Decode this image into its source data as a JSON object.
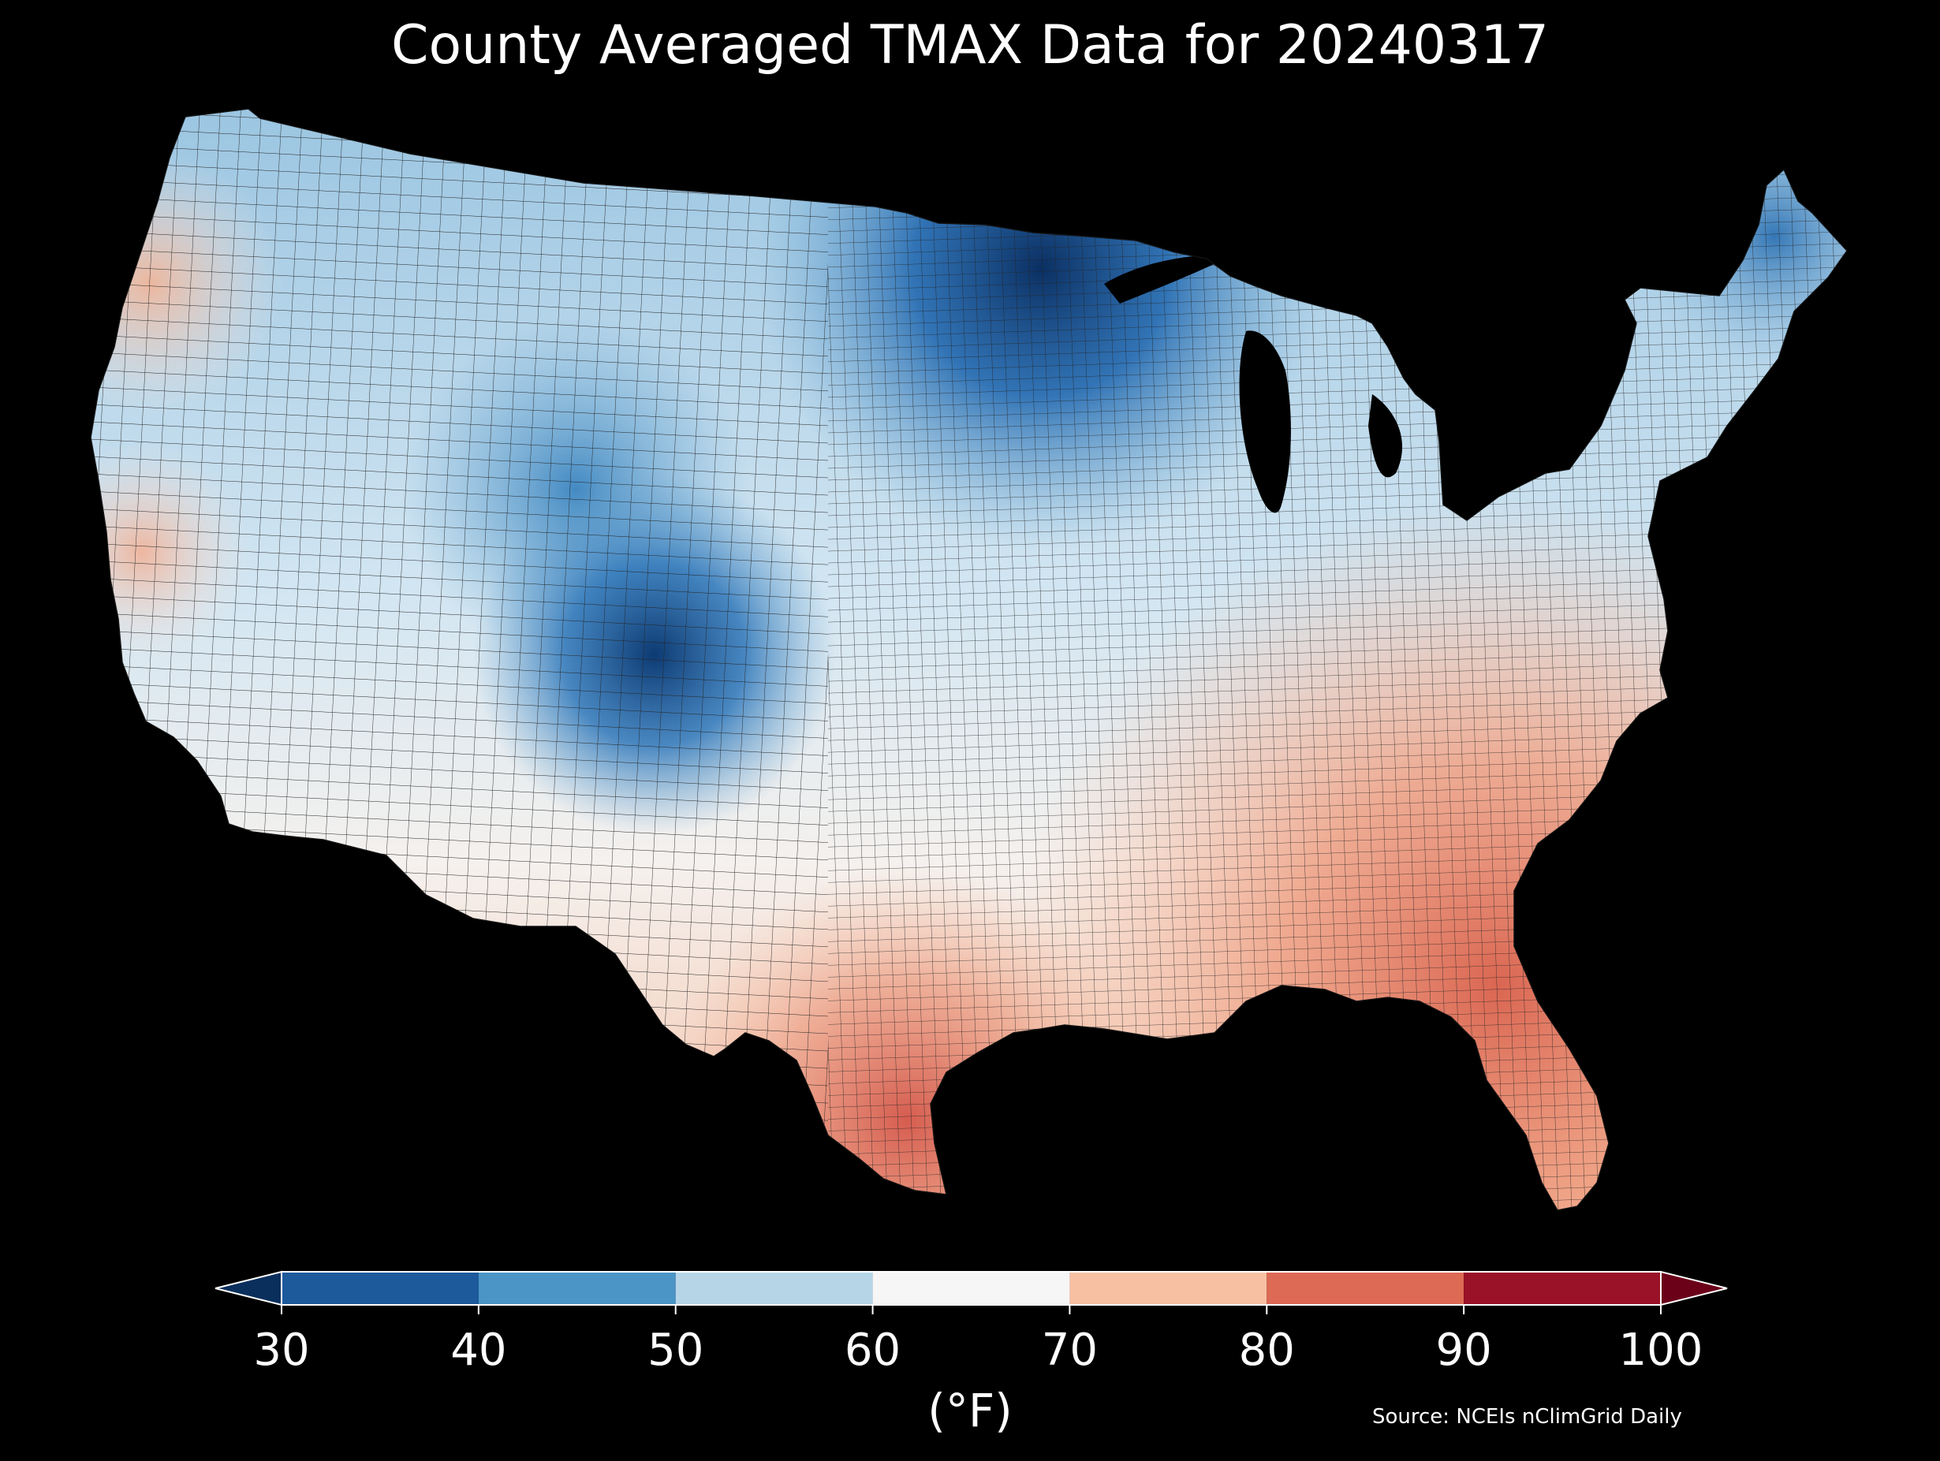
{
  "title": "County Averaged TMAX Data for 20240317",
  "colorbar": {
    "unit_label": "(°F)",
    "ticks": [
      "30",
      "40",
      "50",
      "60",
      "70",
      "80",
      "90",
      "100"
    ],
    "bins": [
      {
        "from": 30,
        "to": 40,
        "color": "#1c5a9c"
      },
      {
        "from": 40,
        "to": 50,
        "color": "#4a95c6"
      },
      {
        "from": 50,
        "to": 60,
        "color": "#b6d6e8"
      },
      {
        "from": 60,
        "to": 70,
        "color": "#f6f6f6"
      },
      {
        "from": 70,
        "to": 80,
        "color": "#f8c0a3"
      },
      {
        "from": 80,
        "to": 90,
        "color": "#dc6a55"
      },
      {
        "from": 90,
        "to": 100,
        "color": "#9a1228"
      }
    ],
    "under_color": "#0a2f5c",
    "over_color": "#6b0119",
    "extend": "both"
  },
  "source": "Source: NCEIs nClimGrid Daily",
  "map": {
    "region": "Contiguous United States",
    "level": "county",
    "variable": "TMAX",
    "date": "20240317",
    "background": "#000000",
    "region_temps_F": [
      {
        "region": "Northern Minnesota",
        "tmax": 32
      },
      {
        "region": "Maine",
        "tmax": 42
      },
      {
        "region": "Colorado Rockies",
        "tmax": 35
      },
      {
        "region": "Wyoming",
        "tmax": 45
      },
      {
        "region": "Montana / Dakotas",
        "tmax": 50
      },
      {
        "region": "Upper Midwest",
        "tmax": 44
      },
      {
        "region": "Washington / Oregon coast",
        "tmax": 68
      },
      {
        "region": "Great Basin",
        "tmax": 55
      },
      {
        "region": "Central California",
        "tmax": 66
      },
      {
        "region": "Southern Plains",
        "tmax": 63
      },
      {
        "region": "Ohio Valley",
        "tmax": 62
      },
      {
        "region": "Northeast",
        "tmax": 57
      },
      {
        "region": "Southeast",
        "tmax": 78
      },
      {
        "region": "South Texas",
        "tmax": 85
      },
      {
        "region": "Florida",
        "tmax": 84
      }
    ]
  }
}
